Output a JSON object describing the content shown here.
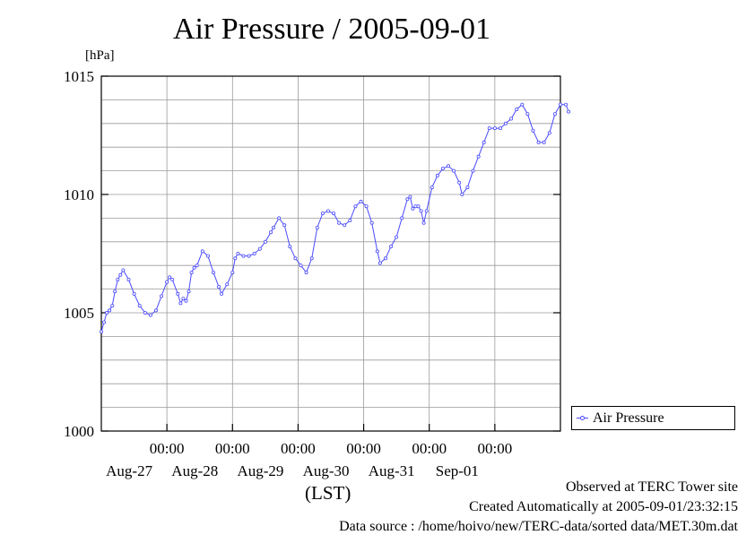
{
  "chart_data": {
    "type": "line",
    "title": "Air Pressure / 2005-09-01",
    "ylabel": "[hPa]",
    "xlabel": "(LST)",
    "ylim": [
      1000,
      1015
    ],
    "yticks": [
      "1000",
      "1005",
      "1010",
      "1015"
    ],
    "xlim_days": [
      "2005-08-26 00:00",
      "2005-09-02 00:00"
    ],
    "xticks": [
      {
        "time": "00:00",
        "date": "Aug-27"
      },
      {
        "time": "00:00",
        "date": "Aug-28"
      },
      {
        "time": "00:00",
        "date": "Aug-29"
      },
      {
        "time": "00:00",
        "date": "Aug-30"
      },
      {
        "time": "00:00",
        "date": "Aug-31"
      },
      {
        "time": "00:00",
        "date": "Sep-01"
      }
    ],
    "grid": true,
    "legend_position": "bottom-right outside",
    "series": [
      {
        "name": "Air Pressure",
        "color": "#4a4aff",
        "points": [
          [
            "2005-08-26 00:00",
            1004.2
          ],
          [
            "2005-08-26 01:00",
            1004.6
          ],
          [
            "2005-08-26 02:00",
            1005.0
          ],
          [
            "2005-08-26 03:00",
            1005.1
          ],
          [
            "2005-08-26 04:00",
            1005.3
          ],
          [
            "2005-08-26 05:00",
            1005.9
          ],
          [
            "2005-08-26 06:00",
            1006.4
          ],
          [
            "2005-08-26 07:00",
            1006.6
          ],
          [
            "2005-08-26 08:00",
            1006.8
          ],
          [
            "2005-08-26 10:00",
            1006.4
          ],
          [
            "2005-08-26 12:00",
            1005.8
          ],
          [
            "2005-08-26 14:00",
            1005.3
          ],
          [
            "2005-08-26 16:00",
            1005.0
          ],
          [
            "2005-08-26 18:00",
            1004.9
          ],
          [
            "2005-08-26 20:00",
            1005.1
          ],
          [
            "2005-08-26 22:00",
            1005.7
          ],
          [
            "2005-08-27 00:00",
            1006.3
          ],
          [
            "2005-08-27 01:00",
            1006.5
          ],
          [
            "2005-08-27 02:00",
            1006.4
          ],
          [
            "2005-08-27 04:00",
            1005.8
          ],
          [
            "2005-08-27 05:00",
            1005.4
          ],
          [
            "2005-08-27 06:00",
            1005.6
          ],
          [
            "2005-08-27 07:00",
            1005.5
          ],
          [
            "2005-08-27 08:00",
            1005.9
          ],
          [
            "2005-08-27 09:00",
            1006.7
          ],
          [
            "2005-08-27 10:00",
            1006.9
          ],
          [
            "2005-08-27 11:00",
            1007.0
          ],
          [
            "2005-08-27 13:00",
            1007.6
          ],
          [
            "2005-08-27 15:00",
            1007.4
          ],
          [
            "2005-08-27 17:00",
            1006.7
          ],
          [
            "2005-08-27 19:00",
            1006.1
          ],
          [
            "2005-08-27 20:00",
            1005.8
          ],
          [
            "2005-08-27 22:00",
            1006.2
          ],
          [
            "2005-08-28 00:00",
            1006.7
          ],
          [
            "2005-08-28 01:00",
            1007.3
          ],
          [
            "2005-08-28 02:00",
            1007.5
          ],
          [
            "2005-08-28 04:00",
            1007.4
          ],
          [
            "2005-08-28 06:00",
            1007.4
          ],
          [
            "2005-08-28 08:00",
            1007.5
          ],
          [
            "2005-08-28 10:00",
            1007.7
          ],
          [
            "2005-08-28 12:00",
            1008.0
          ],
          [
            "2005-08-28 14:00",
            1008.4
          ],
          [
            "2005-08-28 15:00",
            1008.6
          ],
          [
            "2005-08-28 17:00",
            1009.0
          ],
          [
            "2005-08-28 19:00",
            1008.7
          ],
          [
            "2005-08-28 21:00",
            1007.8
          ],
          [
            "2005-08-28 23:00",
            1007.3
          ],
          [
            "2005-08-29 01:00",
            1007.0
          ],
          [
            "2005-08-29 03:00",
            1006.7
          ],
          [
            "2005-08-29 05:00",
            1007.3
          ],
          [
            "2005-08-29 07:00",
            1008.6
          ],
          [
            "2005-08-29 09:00",
            1009.2
          ],
          [
            "2005-08-29 11:00",
            1009.3
          ],
          [
            "2005-08-29 13:00",
            1009.2
          ],
          [
            "2005-08-29 15:00",
            1008.8
          ],
          [
            "2005-08-29 17:00",
            1008.7
          ],
          [
            "2005-08-29 19:00",
            1008.9
          ],
          [
            "2005-08-29 21:00",
            1009.5
          ],
          [
            "2005-08-29 23:00",
            1009.7
          ],
          [
            "2005-08-30 01:00",
            1009.5
          ],
          [
            "2005-08-30 03:00",
            1008.8
          ],
          [
            "2005-08-30 05:00",
            1007.6
          ],
          [
            "2005-08-30 06:00",
            1007.1
          ],
          [
            "2005-08-30 08:00",
            1007.3
          ],
          [
            "2005-08-30 10:00",
            1007.8
          ],
          [
            "2005-08-30 12:00",
            1008.2
          ],
          [
            "2005-08-30 14:00",
            1009.0
          ],
          [
            "2005-08-30 16:00",
            1009.8
          ],
          [
            "2005-08-30 17:00",
            1009.9
          ],
          [
            "2005-08-30 18:00",
            1009.4
          ],
          [
            "2005-08-30 19:00",
            1009.5
          ],
          [
            "2005-08-30 20:00",
            1009.5
          ],
          [
            "2005-08-30 21:00",
            1009.3
          ],
          [
            "2005-08-30 22:00",
            1008.8
          ],
          [
            "2005-08-30 23:00",
            1009.3
          ],
          [
            "2005-08-31 01:00",
            1010.3
          ],
          [
            "2005-08-31 03:00",
            1010.8
          ],
          [
            "2005-08-31 05:00",
            1011.1
          ],
          [
            "2005-08-31 07:00",
            1011.2
          ],
          [
            "2005-08-31 09:00",
            1011.0
          ],
          [
            "2005-08-31 11:00",
            1010.5
          ],
          [
            "2005-08-31 12:00",
            1010.0
          ],
          [
            "2005-08-31 14:00",
            1010.3
          ],
          [
            "2005-08-31 16:00",
            1011.0
          ],
          [
            "2005-08-31 18:00",
            1011.6
          ],
          [
            "2005-08-31 20:00",
            1012.2
          ],
          [
            "2005-08-31 22:00",
            1012.8
          ],
          [
            "2005-09-01 00:00",
            1012.8
          ],
          [
            "2005-09-01 02:00",
            1012.8
          ],
          [
            "2005-09-01 04:00",
            1013.0
          ],
          [
            "2005-09-01 06:00",
            1013.2
          ],
          [
            "2005-09-01 08:00",
            1013.6
          ],
          [
            "2005-09-01 10:00",
            1013.8
          ],
          [
            "2005-09-01 12:00",
            1013.4
          ],
          [
            "2005-09-01 14:00",
            1012.7
          ],
          [
            "2005-09-01 16:00",
            1012.2
          ],
          [
            "2005-09-01 18:00",
            1012.2
          ],
          [
            "2005-09-01 20:00",
            1012.6
          ],
          [
            "2005-09-01 22:00",
            1013.4
          ],
          [
            "2005-09-02 00:00",
            1013.8
          ],
          [
            "2005-09-02 02:00",
            1013.8
          ],
          [
            "2005-09-02 03:00",
            1013.5
          ]
        ]
      }
    ]
  },
  "footer": {
    "observed": "Observed at TERC Tower site",
    "created": "Created Automatically at 2005-09-01/23:32:15",
    "source": "Data source : /home/hoivo/new/TERC-data/sorted  data/MET.30m.dat"
  }
}
